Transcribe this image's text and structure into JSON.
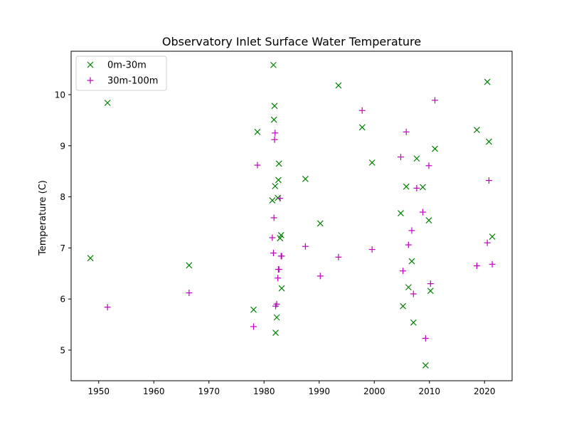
{
  "chart_data": {
    "type": "scatter",
    "title": "Observatory Inlet Surface Water Temperature",
    "xlabel": "",
    "ylabel": "Temperature (C)",
    "xlim": [
      1945,
      2025
    ],
    "ylim": [
      4.4,
      10.85
    ],
    "x_ticks": [
      1950,
      1960,
      1970,
      1980,
      1990,
      2000,
      2010,
      2020
    ],
    "y_ticks": [
      5,
      6,
      7,
      8,
      9,
      10
    ],
    "grid": false,
    "legend_position": "upper-left",
    "series": [
      {
        "name": "0m-30m",
        "color": "#008000",
        "marker": "x",
        "points": [
          [
            1948.5,
            6.8
          ],
          [
            1951.6,
            9.84
          ],
          [
            1966.4,
            6.66
          ],
          [
            1978.1,
            5.79
          ],
          [
            1978.8,
            9.27
          ],
          [
            1981.5,
            7.93
          ],
          [
            1981.7,
            10.58
          ],
          [
            1981.8,
            9.51
          ],
          [
            1981.9,
            9.78
          ],
          [
            1982.0,
            8.21
          ],
          [
            1982.1,
            5.34
          ],
          [
            1982.3,
            5.64
          ],
          [
            1982.5,
            7.98
          ],
          [
            1982.6,
            8.33
          ],
          [
            1982.7,
            8.65
          ],
          [
            1982.9,
            7.19
          ],
          [
            1983.1,
            7.25
          ],
          [
            1983.2,
            6.21
          ],
          [
            1987.5,
            8.35
          ],
          [
            1990.2,
            7.48
          ],
          [
            1993.5,
            10.18
          ],
          [
            1997.8,
            9.36
          ],
          [
            1999.6,
            8.67
          ],
          [
            2004.8,
            7.68
          ],
          [
            2005.2,
            5.86
          ],
          [
            2005.8,
            8.2
          ],
          [
            2006.2,
            6.23
          ],
          [
            2006.8,
            6.74
          ],
          [
            2007.1,
            5.54
          ],
          [
            2007.7,
            8.75
          ],
          [
            2008.8,
            8.19
          ],
          [
            2009.3,
            4.7
          ],
          [
            2009.9,
            7.54
          ],
          [
            2010.2,
            6.16
          ],
          [
            2011.0,
            8.94
          ],
          [
            2018.6,
            9.31
          ],
          [
            2020.5,
            10.25
          ],
          [
            2020.8,
            9.08
          ],
          [
            2021.4,
            7.22
          ]
        ]
      },
      {
        "name": "30m-100m",
        "color": "#bf00bf",
        "marker": "+",
        "points": [
          [
            1951.6,
            5.84
          ],
          [
            1966.4,
            6.12
          ],
          [
            1978.1,
            5.46
          ],
          [
            1978.8,
            8.62
          ],
          [
            1981.5,
            7.2
          ],
          [
            1981.7,
            6.9
          ],
          [
            1981.8,
            7.59
          ],
          [
            1981.9,
            9.12
          ],
          [
            1982.0,
            9.25
          ],
          [
            1982.1,
            5.86
          ],
          [
            1982.3,
            5.9
          ],
          [
            1982.5,
            6.41
          ],
          [
            1982.6,
            6.58
          ],
          [
            1982.7,
            6.58
          ],
          [
            1982.9,
            7.97
          ],
          [
            1983.1,
            6.84
          ],
          [
            1983.2,
            6.84
          ],
          [
            1987.5,
            7.03
          ],
          [
            1990.2,
            6.45
          ],
          [
            1993.5,
            6.82
          ],
          [
            1997.8,
            9.69
          ],
          [
            1999.6,
            6.97
          ],
          [
            2004.8,
            8.78
          ],
          [
            2005.2,
            6.55
          ],
          [
            2005.8,
            9.27
          ],
          [
            2006.2,
            7.06
          ],
          [
            2006.8,
            7.34
          ],
          [
            2007.1,
            6.1
          ],
          [
            2007.7,
            8.17
          ],
          [
            2008.8,
            7.7
          ],
          [
            2009.3,
            5.23
          ],
          [
            2009.9,
            8.61
          ],
          [
            2010.2,
            6.3
          ],
          [
            2011.0,
            9.89
          ],
          [
            2018.6,
            6.65
          ],
          [
            2020.5,
            7.1
          ],
          [
            2020.8,
            8.32
          ],
          [
            2021.4,
            6.68
          ]
        ]
      }
    ]
  }
}
